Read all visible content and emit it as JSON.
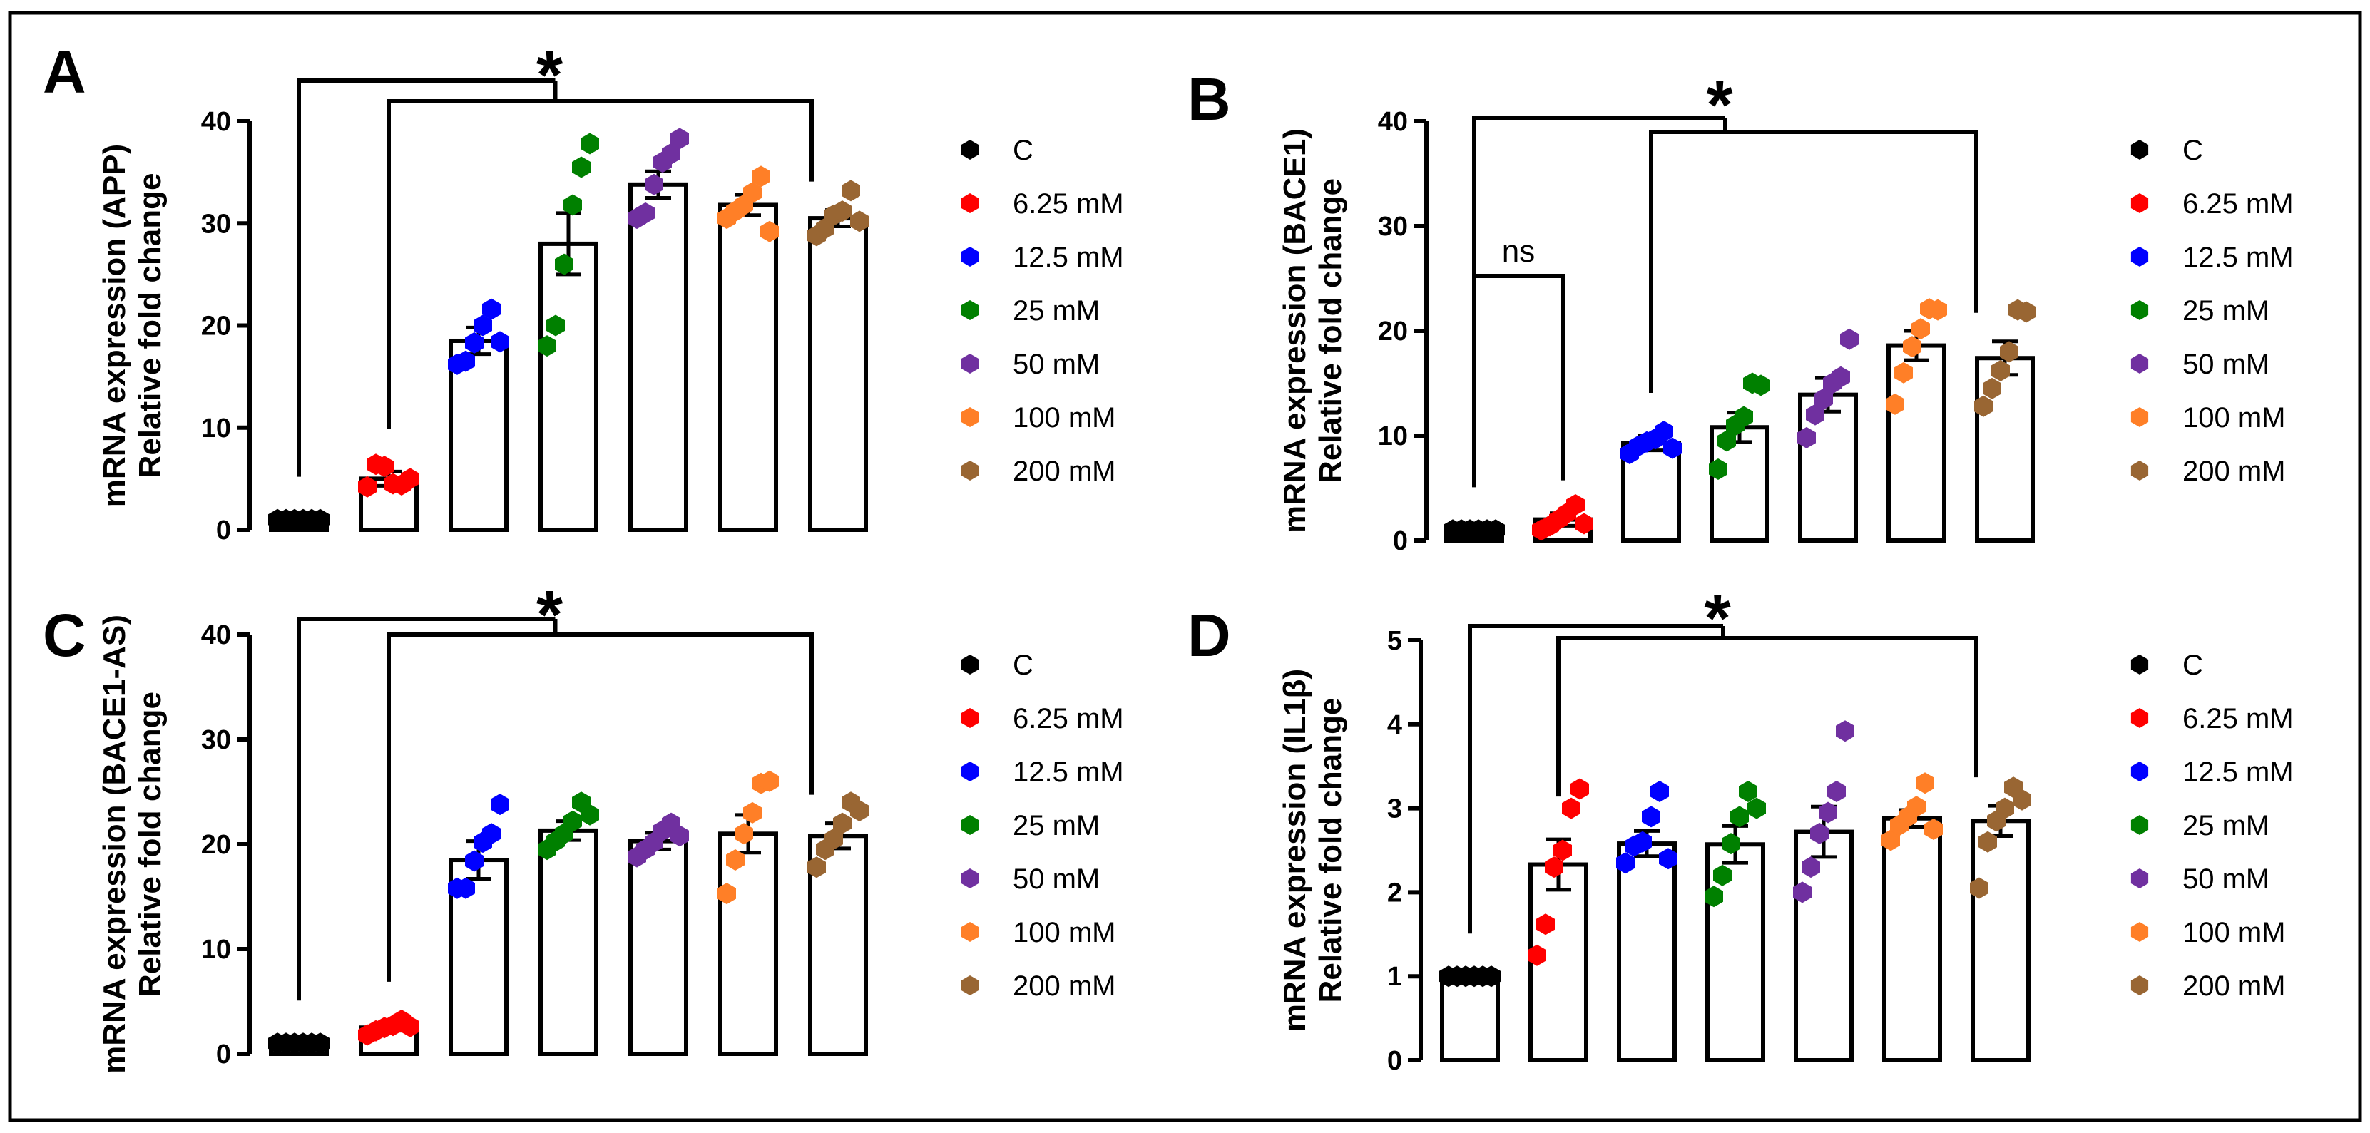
{
  "legend": {
    "entries": [
      {
        "label": "C",
        "color": "#000000"
      },
      {
        "label": "6.25 mM",
        "color": "#ff0000"
      },
      {
        "label": "12.5 mM",
        "color": "#0000ff"
      },
      {
        "label": "25 mM",
        "color": "#008000"
      },
      {
        "label": "50 mM",
        "color": "#7030a0"
      },
      {
        "label": "100 mM",
        "color": "#ff7f27"
      },
      {
        "label": "200 mM",
        "color": "#996633"
      }
    ]
  },
  "chart_data": [
    {
      "panel": "A",
      "type": "bar",
      "ylabel": [
        "mRNA expression (APP)",
        "Relative fold change"
      ],
      "ylim": [
        0,
        40
      ],
      "yticks": [
        0,
        10,
        20,
        30,
        40
      ],
      "categories": [
        "C",
        "6.25 mM",
        "12.5 mM",
        "25 mM",
        "50 mM",
        "100 mM",
        "200 mM"
      ],
      "values": [
        1.0,
        5.0,
        18.5,
        28.0,
        33.8,
        31.8,
        30.5
      ],
      "sem": [
        0.1,
        0.7,
        1.3,
        3.0,
        1.3,
        1.0,
        0.8
      ],
      "points": [
        [
          1,
          1,
          1,
          1,
          1,
          1
        ],
        [
          4.2,
          6.4,
          6.2,
          4.5,
          4.4,
          5.0
        ],
        [
          16.2,
          16.5,
          18.3,
          20.0,
          21.6,
          18.4
        ],
        [
          18.0,
          20.0,
          26.0,
          31.8,
          35.5,
          37.8
        ],
        [
          30.5,
          31.0,
          33.8,
          36.0,
          36.8,
          38.3
        ],
        [
          30.5,
          31.2,
          31.8,
          33.0,
          34.6,
          29.2
        ],
        [
          28.8,
          29.5,
          30.8,
          31.2,
          33.2,
          30.2
        ]
      ],
      "significance": {
        "label": "*",
        "bracket": "C and 6.25 mM vs 200 mM"
      }
    },
    {
      "panel": "B",
      "type": "bar",
      "ylabel": [
        "mRNA expression (BACE1)",
        "Relative fold change"
      ],
      "ylim": [
        0,
        40
      ],
      "yticks": [
        0,
        10,
        20,
        30,
        40
      ],
      "categories": [
        "C",
        "6.25 mM",
        "12.5 mM",
        "25 mM",
        "50 mM",
        "100 mM",
        "200 mM"
      ],
      "values": [
        1.0,
        2.0,
        9.3,
        10.8,
        13.9,
        18.6,
        17.4
      ],
      "sem": [
        0.1,
        0.6,
        0.7,
        1.4,
        1.6,
        1.4,
        1.6
      ],
      "points": [
        [
          1,
          1,
          1,
          1,
          1,
          1
        ],
        [
          1.0,
          1.4,
          2.0,
          2.6,
          3.4,
          1.6
        ],
        [
          8.3,
          9.0,
          9.4,
          9.7,
          10.4,
          8.8
        ],
        [
          6.8,
          9.5,
          11.0,
          11.8,
          15.0,
          14.8
        ],
        [
          9.8,
          12.0,
          13.5,
          15.0,
          15.6,
          19.2
        ],
        [
          13.0,
          16.0,
          18.5,
          20.2,
          22.1,
          22.0
        ],
        [
          12.8,
          14.5,
          16.2,
          18.0,
          22.0,
          21.8
        ]
      ],
      "annotations": [
        "ns"
      ],
      "significance": {
        "label": "*",
        "bracket": "C and 12.5 mM vs 200 mM"
      }
    },
    {
      "panel": "C",
      "type": "bar",
      "ylabel": [
        "mRNA expression (BACE1-AS)",
        "Relative fold change"
      ],
      "ylim": [
        0,
        40
      ],
      "yticks": [
        0,
        10,
        20,
        30,
        40
      ],
      "categories": [
        "C",
        "6.25 mM",
        "12.5 mM",
        "25 mM",
        "50 mM",
        "100 mM",
        "200 mM"
      ],
      "values": [
        1.0,
        2.5,
        18.5,
        21.3,
        20.3,
        21.0,
        20.8
      ],
      "sem": [
        0.1,
        0.3,
        1.8,
        0.9,
        0.8,
        1.8,
        1.2
      ],
      "points": [
        [
          1,
          1,
          1,
          1,
          1,
          1
        ],
        [
          1.8,
          2.2,
          2.5,
          2.7,
          3.2,
          2.6
        ],
        [
          15.8,
          15.8,
          18.4,
          20.2,
          21.0,
          23.8
        ],
        [
          19.5,
          20.3,
          21.0,
          22.2,
          24.0,
          22.8
        ],
        [
          18.8,
          19.5,
          20.2,
          21.3,
          22.0,
          20.8
        ],
        [
          15.3,
          18.5,
          21.0,
          23.0,
          25.8,
          26.0
        ],
        [
          17.8,
          19.5,
          20.5,
          22.0,
          24.0,
          23.2
        ]
      ],
      "significance": {
        "label": "*",
        "bracket": "C and 6.25 mM vs 200 mM"
      }
    },
    {
      "panel": "D",
      "type": "bar",
      "ylabel": [
        "mRNA expression (IL1β)",
        "Relative fold change"
      ],
      "ylim": [
        0,
        5
      ],
      "yticks": [
        0,
        1,
        2,
        3,
        4,
        5
      ],
      "categories": [
        "C",
        "6.25 mM",
        "12.5 mM",
        "25 mM",
        "50 mM",
        "100 mM",
        "200 mM"
      ],
      "values": [
        1.0,
        2.33,
        2.58,
        2.57,
        2.72,
        2.88,
        2.85
      ],
      "sem": [
        0.02,
        0.3,
        0.15,
        0.22,
        0.3,
        0.1,
        0.18
      ],
      "points": [
        [
          1,
          1,
          1,
          1,
          1,
          1
        ],
        [
          1.25,
          1.62,
          2.3,
          2.5,
          3.0,
          3.23
        ],
        [
          2.35,
          2.55,
          2.6,
          2.9,
          3.2,
          2.4
        ],
        [
          1.95,
          2.2,
          2.58,
          2.9,
          3.2,
          3.0
        ],
        [
          2.0,
          2.3,
          2.7,
          2.95,
          3.2,
          3.92
        ],
        [
          2.62,
          2.8,
          2.9,
          3.02,
          3.3,
          2.75
        ],
        [
          2.05,
          2.6,
          2.85,
          3.0,
          3.25,
          3.1
        ]
      ],
      "significance": {
        "label": "*",
        "bracket": "C and 6.25 mM vs 200 mM"
      }
    }
  ]
}
